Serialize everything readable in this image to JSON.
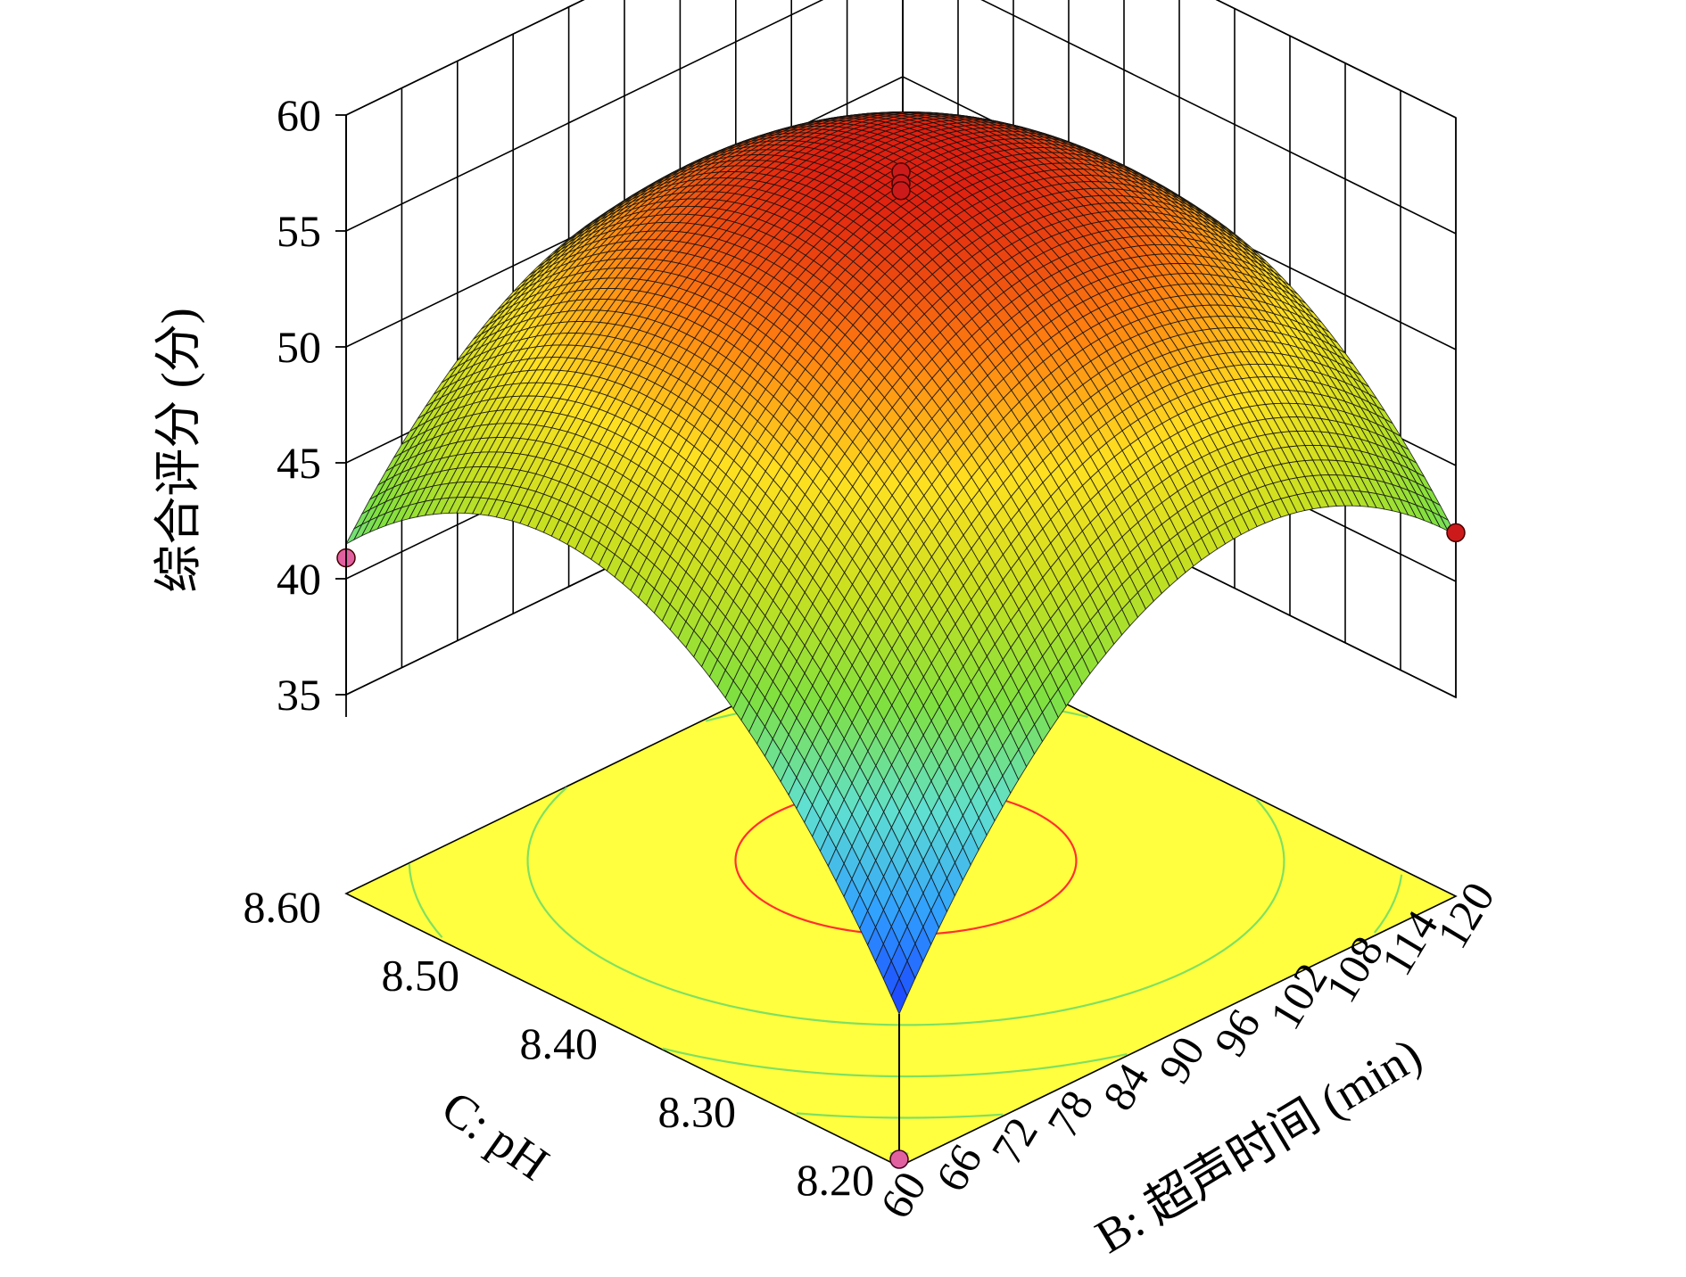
{
  "chart_data": {
    "type": "surface3d",
    "title": "",
    "zlabel": "综合评分 (分)",
    "xlabel": "B: 超声时间 (min)",
    "ylabel": "C: pH",
    "x": {
      "range": [
        60,
        120
      ],
      "ticks": [
        60,
        66,
        72,
        78,
        84,
        90,
        96,
        102,
        108,
        114,
        120
      ],
      "tick_labels": [
        "60",
        "66",
        "72",
        "78",
        "84",
        "90",
        "96",
        "102",
        "108",
        "114",
        "120"
      ]
    },
    "y": {
      "range": [
        8.2,
        8.6
      ],
      "ticks": [
        8.2,
        8.3,
        8.4,
        8.5,
        8.6
      ],
      "tick_labels": [
        "8.20",
        "8.30",
        "8.40",
        "8.50",
        "8.60"
      ]
    },
    "z": {
      "range": [
        35,
        60
      ],
      "ticks": [
        35,
        40,
        45,
        50,
        55,
        60
      ],
      "tick_labels": [
        "35",
        "40",
        "45",
        "50",
        "55",
        "60"
      ]
    },
    "surface": {
      "model": "quadratic",
      "peak": {
        "x": 90,
        "y": 8.4,
        "z": 56.6
      },
      "corners": [
        {
          "x": 60,
          "y": 8.2,
          "z": 33.0
        },
        {
          "x": 120,
          "y": 8.2,
          "z": 42.0
        },
        {
          "x": 60,
          "y": 8.6,
          "z": 41.5
        },
        {
          "x": 120,
          "y": 8.6,
          "z": 42.5
        }
      ]
    },
    "design_points": [
      {
        "x": 90,
        "y": 8.4,
        "z": 57.6,
        "color": "#cc1a1a"
      },
      {
        "x": 90,
        "y": 8.4,
        "z": 57.1,
        "color": "#cc1a1a"
      },
      {
        "x": 90,
        "y": 8.4,
        "z": 56.8,
        "color": "#cc1a1a"
      },
      {
        "x": 60,
        "y": 8.6,
        "z": 40.9,
        "color": "#e060a0"
      },
      {
        "x": 120,
        "y": 8.2,
        "z": 42.1,
        "color": "#cc1a1a"
      }
    ],
    "floor_contours": {
      "floor_color": "#ffff40",
      "levels": [
        {
          "z": 55.5,
          "color": "#ff3030"
        },
        {
          "z": 50,
          "color": "#80e060"
        },
        {
          "z": 45,
          "color": "#80e060"
        },
        {
          "z": 40,
          "color": "#80e060"
        },
        {
          "z": 35,
          "color": "#80e060"
        }
      ]
    },
    "colormap": [
      "#1a3cff",
      "#30a0ff",
      "#60e0d0",
      "#80e040",
      "#c8e020",
      "#ffe020",
      "#ff8010",
      "#e02010"
    ],
    "grid": true
  }
}
